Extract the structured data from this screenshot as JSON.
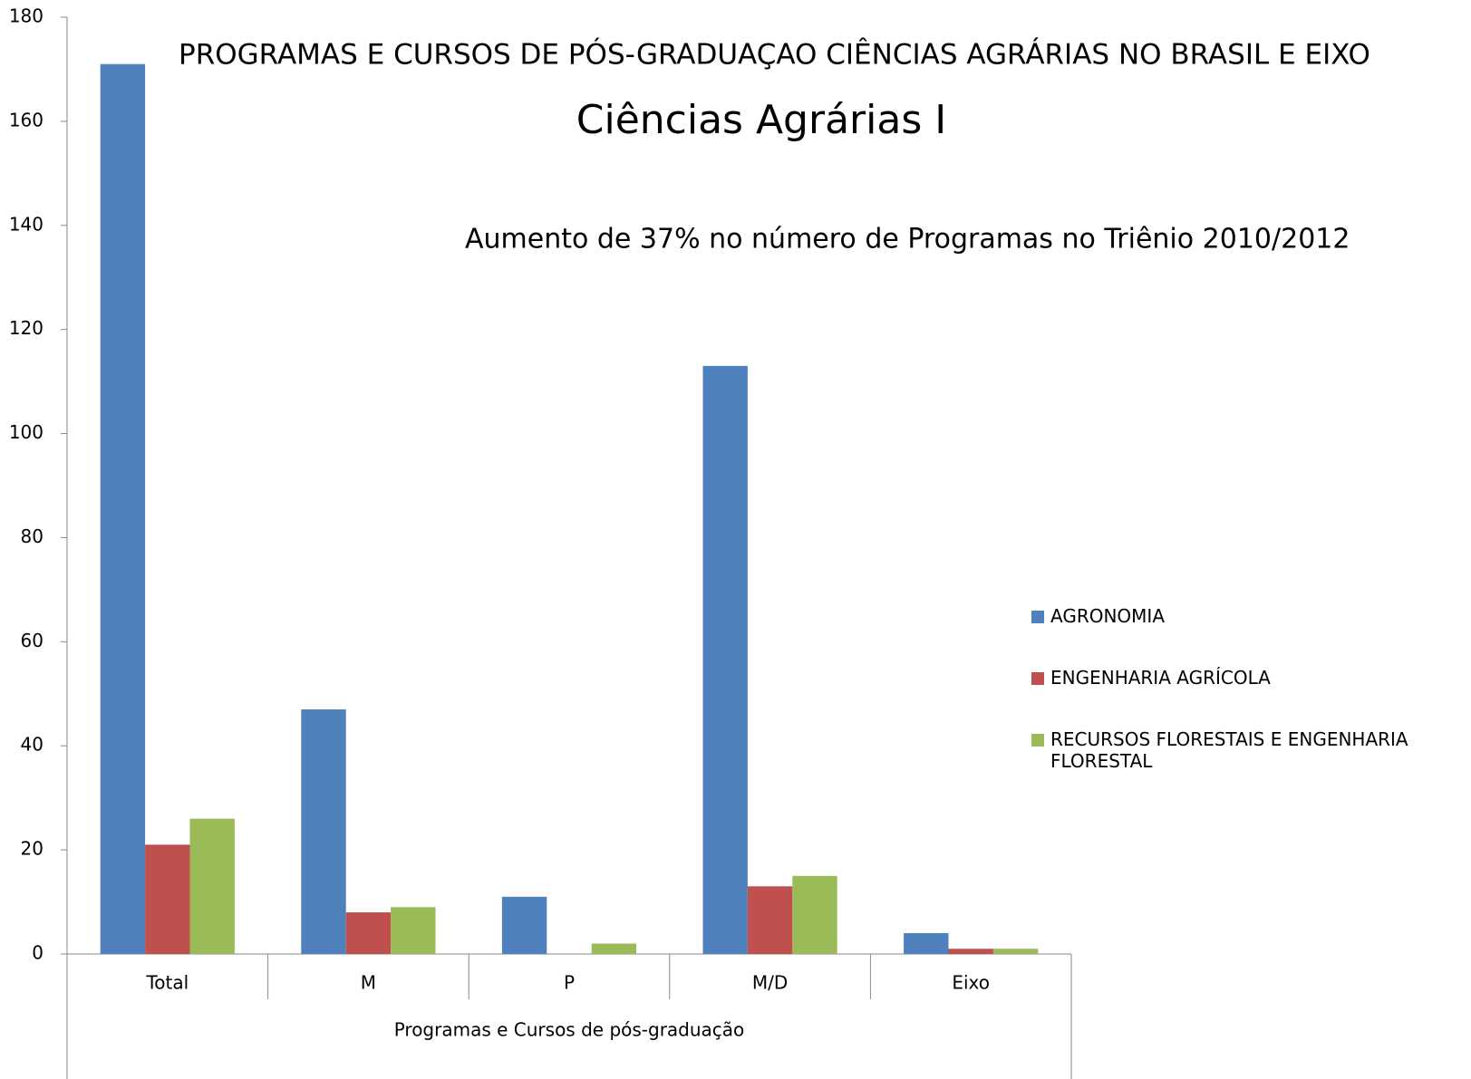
{
  "chart_data": {
    "type": "bar",
    "title": "PROGRAMAS E CURSOS DE PÓS-GRADUAÇAO CIÊNCIAS AGRÁRIAS NO BRASIL E EIXO",
    "subtitle": "Ciências Agrárias I",
    "annotation": "Aumento de 37% no número de Programas no Triênio 2010/2012",
    "x_label": "Programas e Cursos de pós-graduação",
    "categories": [
      "Total",
      "M",
      "P",
      "M/D",
      "Eixo"
    ],
    "series": [
      {
        "name": "AGRONOMIA",
        "color": "#4f81bd",
        "values": [
          171,
          47,
          11,
          113,
          4
        ]
      },
      {
        "name": "ENGENHARIA AGRÍCOLA",
        "color": "#c0504d",
        "values": [
          21,
          8,
          0,
          13,
          1
        ]
      },
      {
        "name": "RECURSOS FLORESTAIS E ENGENHARIA FLORESTAL",
        "color": "#9bbb59",
        "values": [
          26,
          9,
          2,
          15,
          1
        ]
      }
    ],
    "ylim": [
      0,
      180
    ],
    "yticks": [
      0,
      20,
      40,
      60,
      80,
      100,
      120,
      140,
      160,
      180
    ],
    "grid": false,
    "legend": "right"
  }
}
